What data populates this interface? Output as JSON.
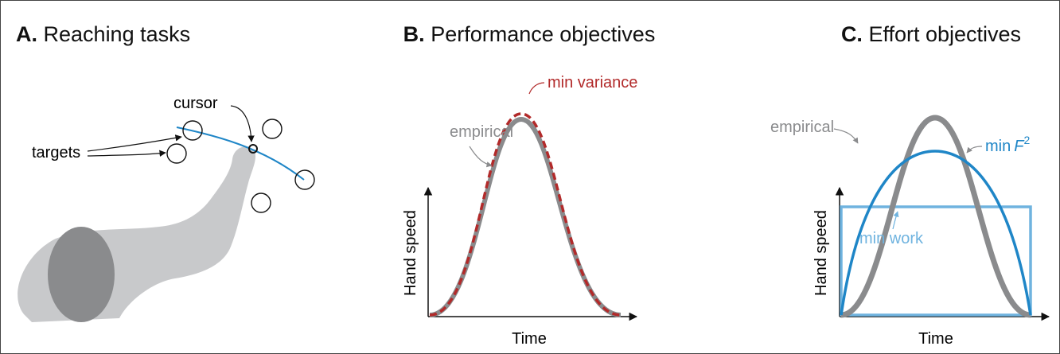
{
  "panels": [
    {
      "letter": "A.",
      "title": "Reaching tasks",
      "annotations": [
        "cursor",
        "targets"
      ]
    },
    {
      "letter": "B.",
      "title": "Performance objectives",
      "annotations": [
        "empirical",
        "min variance"
      ],
      "y_label": "Hand speed",
      "x_label": "Time"
    },
    {
      "letter": "C.",
      "title": "Effort objectives",
      "annotations": [
        "empirical",
        {
          "text": "min",
          "symbol": "F",
          "superscript": "2"
        },
        "min work"
      ],
      "y_label": "Hand speed",
      "x_label": "Time"
    }
  ]
}
